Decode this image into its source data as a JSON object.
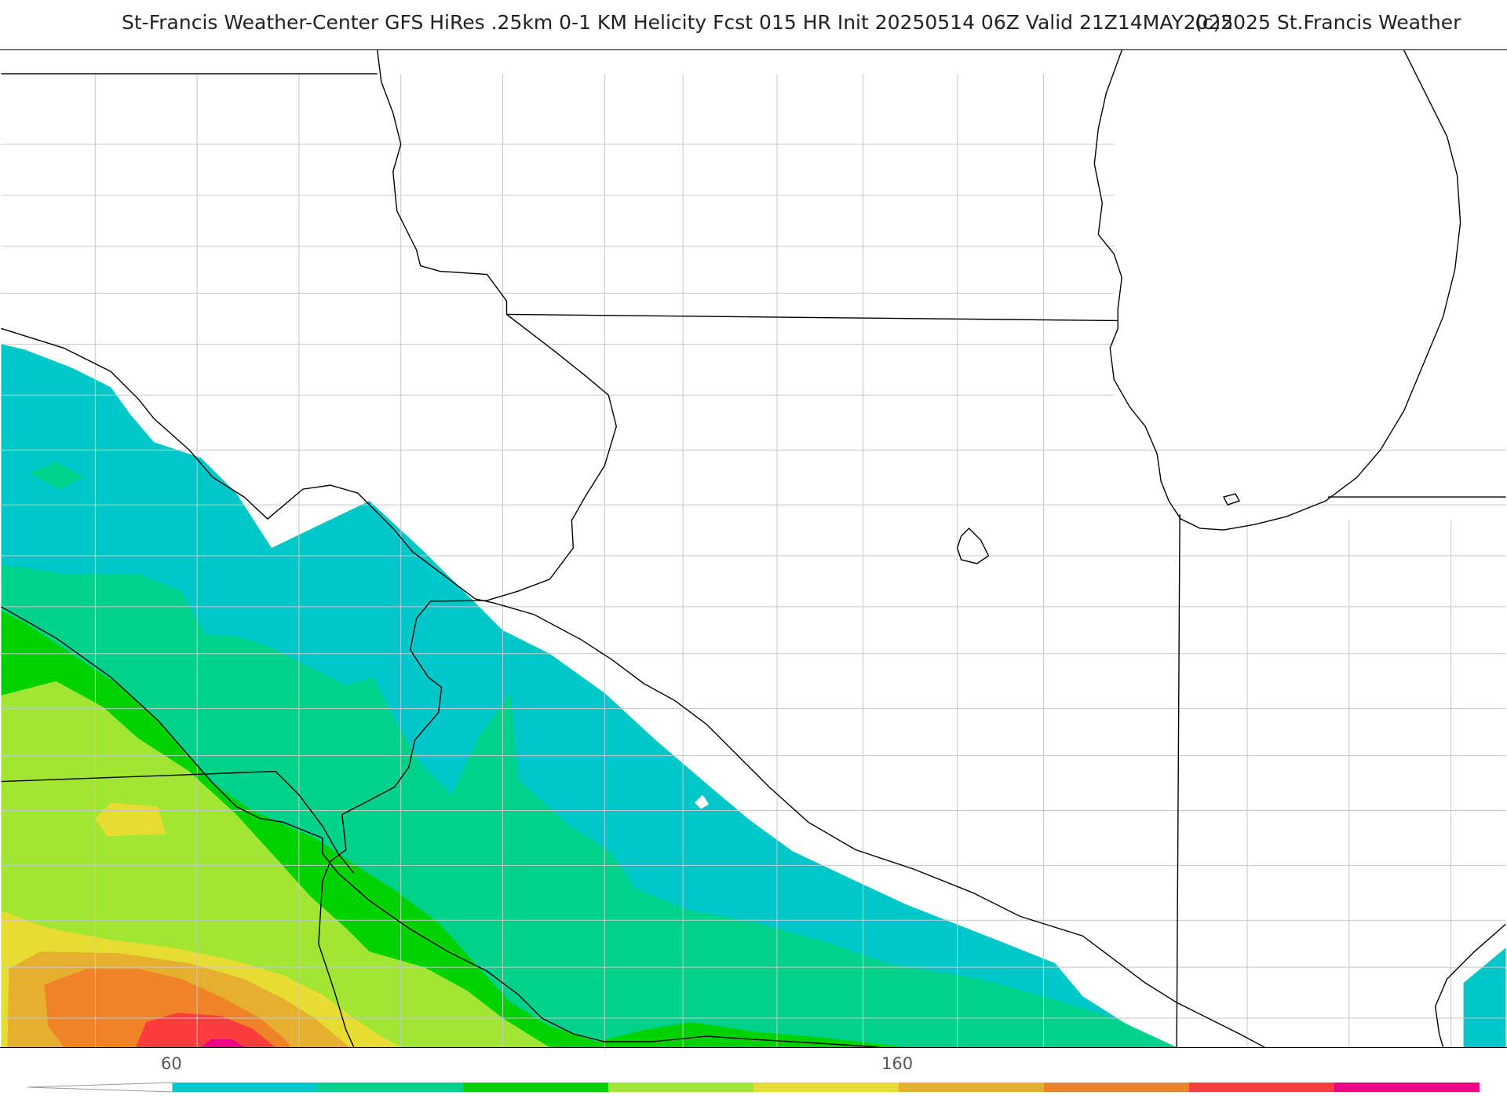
{
  "header": {
    "title": "St-Francis Weather-Center GFS HiRes .25km 0-1 KM Helicity Fcst 015 HR Init 20250514 06Z  Valid 21Z14MAY2025",
    "copyright": "(c)2025 St.Francis Weather"
  },
  "legend": {
    "tick_labels": [
      "60",
      "160"
    ],
    "colors": [
      "#00c8c8",
      "#00d28c",
      "#00d200",
      "#a0e632",
      "#e6dc32",
      "#e6af2d",
      "#f08228",
      "#fa3c3c",
      "#f00082"
    ]
  },
  "map": {
    "fill_colors": {
      "cyan": "#00c8c8",
      "teal": "#00d28c",
      "green": "#00d200",
      "yellowgreen": "#a0e632",
      "yellow": "#e6dc32",
      "lightorange": "#e6af2d",
      "orange": "#f08228",
      "red": "#fa3c3c",
      "magenta": "#f00082"
    }
  }
}
